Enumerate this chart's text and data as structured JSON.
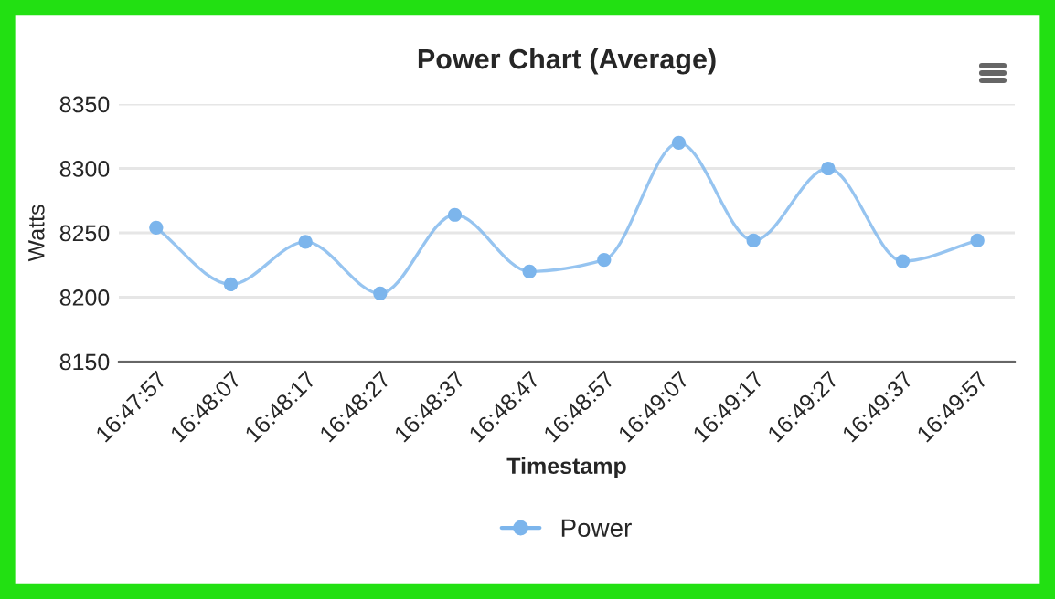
{
  "chart_data": {
    "type": "line",
    "title": "Power Chart (Average)",
    "xlabel": "Timestamp",
    "ylabel": "Watts",
    "categories": [
      "16:47:57",
      "16:48:07",
      "16:48:17",
      "16:48:27",
      "16:48:37",
      "16:48:47",
      "16:48:57",
      "16:49:07",
      "16:49:17",
      "16:49:27",
      "16:49:37",
      "16:49:57"
    ],
    "series": [
      {
        "name": "Power",
        "color": "#7cb5ec",
        "values": [
          8254,
          8210,
          8243,
          8203,
          8264,
          8220,
          8229,
          8320,
          8244,
          8300,
          8228,
          8244
        ]
      }
    ],
    "ylim": [
      8150,
      8350
    ],
    "yticks": [
      8150,
      8200,
      8250,
      8300,
      8350
    ],
    "grid": "y",
    "legend": "bottom",
    "marker": "circle",
    "line_style": "solid"
  }
}
